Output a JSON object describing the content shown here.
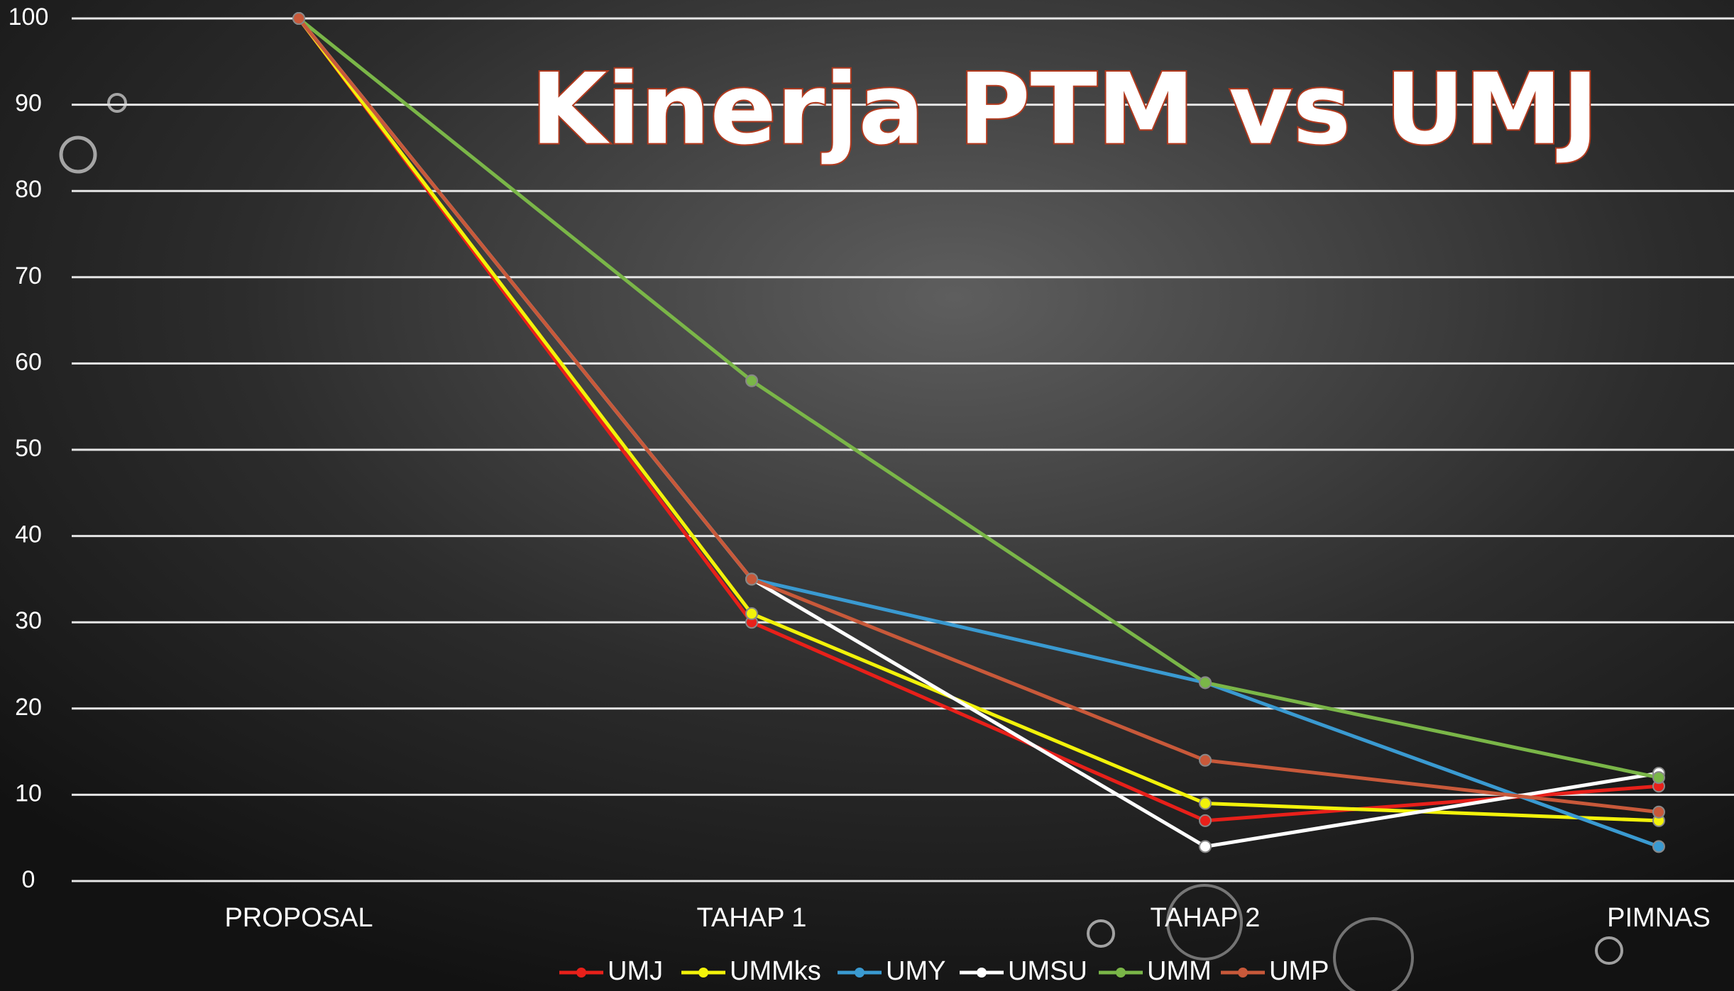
{
  "chart_data": {
    "type": "line",
    "title": "Kinerja PTM vs UMJ",
    "categories": [
      "PROPOSAL",
      "TAHAP 1",
      "TAHAP 2",
      "PIMNAS"
    ],
    "ylim": [
      0,
      100
    ],
    "yticks": [
      0,
      10,
      20,
      30,
      40,
      50,
      60,
      70,
      80,
      90,
      100
    ],
    "grid": true,
    "legend": "bottom",
    "series": [
      {
        "name": "UMJ",
        "color": "#e8201a",
        "values": [
          100,
          30,
          7,
          11
        ]
      },
      {
        "name": "UMMks",
        "color": "#f2f20a",
        "values": [
          100,
          31,
          9,
          7
        ]
      },
      {
        "name": "UMY",
        "color": "#3a9ad1",
        "values": [
          100,
          35,
          23,
          4
        ]
      },
      {
        "name": "UMSU",
        "color": "#ffffff",
        "values": [
          100,
          35,
          4,
          12.5
        ]
      },
      {
        "name": "UMM",
        "color": "#7ab648",
        "values": [
          100,
          58,
          23,
          12
        ]
      },
      {
        "name": "UMP",
        "color": "#c8593a",
        "values": [
          100,
          35,
          14,
          8
        ]
      }
    ]
  }
}
